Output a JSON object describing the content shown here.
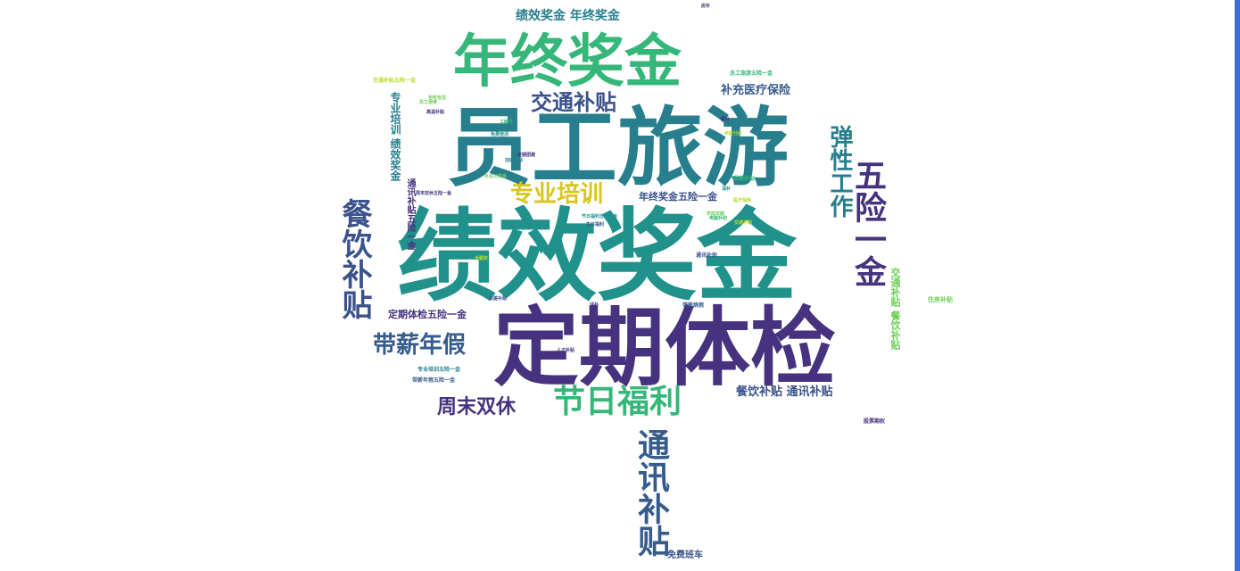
{
  "palette": {
    "purple": "#46327e",
    "indigo": "#3b528b",
    "blue": "#365c8d",
    "teal": "#277f8e",
    "cyan": "#21918c",
    "green": "#35b779",
    "lime": "#6ece58",
    "yellow": "#b5de2b",
    "gold": "#d8c51f",
    "edge": "#3b6fd6"
  },
  "words": [
    {
      "text": "绩效奖金",
      "color": "#21918c"
    },
    {
      "text": "员工旅游",
      "color": "#277f8e"
    },
    {
      "text": "定期体检",
      "color": "#46327e"
    },
    {
      "text": "年终奖金",
      "color": "#35b779"
    },
    {
      "text": "专业培训",
      "color": "#d8c51f"
    },
    {
      "text": "交通补贴",
      "color": "#3b528b"
    },
    {
      "text": "补充医疗保险",
      "color": "#365c8d"
    },
    {
      "text": "绩效奖金 年终奖金",
      "color": "#277f8e"
    },
    {
      "text": "带薪年假",
      "color": "#365c8d"
    },
    {
      "text": "节日福利",
      "color": "#35b779"
    },
    {
      "text": "周末双休",
      "color": "#46327e"
    },
    {
      "text": "餐饮补贴",
      "color": "#3b528b"
    },
    {
      "text": "弹性工作",
      "color": "#277f8e"
    },
    {
      "text": "五险一金",
      "color": "#46327e"
    },
    {
      "text": "通讯补贴",
      "color": "#365c8d"
    },
    {
      "text": "餐饮补贴 通讯补贴",
      "color": "#3b528b"
    },
    {
      "text": "定期体检五险一金",
      "color": "#46327e"
    },
    {
      "text": "年终奖金五险一金",
      "color": "#3b528b"
    },
    {
      "text": "专业培训 绩效奖金",
      "color": "#277f8e"
    },
    {
      "text": "交通补贴 餐饮补贴",
      "color": "#6ece58"
    },
    {
      "text": "免费班车",
      "color": "#3b528b"
    },
    {
      "text": "通讯补贴五险一金",
      "color": "#46327e"
    },
    {
      "text": "专业培训五险一金",
      "color": "#277f8e"
    },
    {
      "text": "带薪年假五险一金",
      "color": "#365c8d"
    },
    {
      "text": "住房补贴",
      "color": "#6ece58"
    },
    {
      "text": "股票期权",
      "color": "#46327e"
    },
    {
      "text": "交通补贴五险一金",
      "color": "#b5de2b"
    },
    {
      "text": "员工旅游五险一金",
      "color": "#35b779"
    },
    {
      "text": "节日福利五险一金",
      "color": "#21918c"
    },
    {
      "text": "周末双休五险一金",
      "color": "#46327e"
    },
    {
      "text": "包吃包住",
      "color": "#6ece58"
    },
    {
      "text": "全勤奖",
      "color": "#b5de2b"
    },
    {
      "text": "餐补",
      "color": "#46327e"
    },
    {
      "text": "采暖补贴",
      "color": "#35b779"
    },
    {
      "text": "出差补贴",
      "color": "#3b528b"
    },
    {
      "text": "高温补贴",
      "color": "#46327e"
    },
    {
      "text": "加班补贴",
      "color": "#277f8e"
    },
    {
      "text": "年底双薪",
      "color": "#6ece58"
    },
    {
      "text": "交通补助",
      "color": "#b5de2b"
    },
    {
      "text": "房补",
      "color": "#46327e"
    },
    {
      "text": "油补",
      "color": "#21918c"
    },
    {
      "text": "通讯补助",
      "color": "#3b528b"
    },
    {
      "text": "带薪病假",
      "color": "#365c8d"
    },
    {
      "text": "员工宿舍",
      "color": "#6ece58"
    },
    {
      "text": "话补",
      "color": "#46327e"
    },
    {
      "text": "工龄奖",
      "color": "#35b779"
    },
    {
      "text": "年终分红",
      "color": "#b5de2b"
    },
    {
      "text": "生日福利",
      "color": "#3b528b"
    },
    {
      "text": "定期团建",
      "color": "#46327e"
    },
    {
      "text": "免费培训",
      "color": "#21918c"
    },
    {
      "text": "医疗保险",
      "color": "#b5de2b"
    },
    {
      "text": "补充公积金",
      "color": "#6ece58"
    },
    {
      "text": "人才补贴",
      "color": "#46327e"
    },
    {
      "text": "电脑补助",
      "color": "#35b779"
    }
  ]
}
